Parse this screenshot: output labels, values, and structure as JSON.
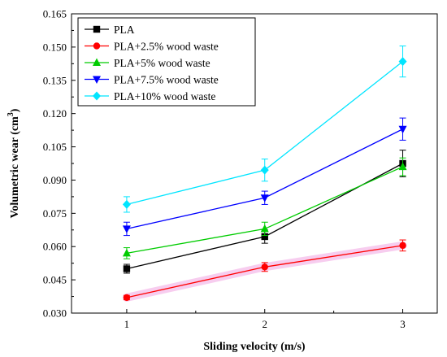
{
  "chart_data": {
    "type": "line",
    "xlabel": "Sliding velocity (m/s)",
    "ylabel_main": "Volumetric wear (cm",
    "ylabel_sup": "3",
    "ylabel_close": ")",
    "x": [
      1,
      2,
      3
    ],
    "xticks": [
      "1",
      "2",
      "3"
    ],
    "xlim": [
      0.6,
      3.25
    ],
    "ylim": [
      0.03,
      0.165
    ],
    "yticks": [
      "0.030",
      "0.045",
      "0.060",
      "0.075",
      "0.090",
      "0.105",
      "0.120",
      "0.135",
      "0.150",
      "0.165"
    ],
    "legend_position": "top-left",
    "grid": false,
    "series": [
      {
        "name": "PLA",
        "color": "#000000",
        "marker": "square",
        "values": [
          0.05,
          0.0645,
          0.0975
        ],
        "errors": [
          0.002,
          0.003,
          0.006
        ]
      },
      {
        "name": "PLA+2.5% wood waste",
        "color": "#ff0000",
        "marker": "circle",
        "values": [
          0.037,
          0.0508,
          0.0605
        ],
        "errors": [
          0.001,
          0.002,
          0.0025
        ]
      },
      {
        "name": "PLA+5% wood waste",
        "color": "#00cc00",
        "marker": "triangle-up",
        "values": [
          0.057,
          0.068,
          0.096
        ],
        "errors": [
          0.0025,
          0.003,
          0.004
        ]
      },
      {
        "name": "PLA+7.5% wood waste",
        "color": "#0000ff",
        "marker": "triangle-down",
        "values": [
          0.068,
          0.082,
          0.113
        ],
        "errors": [
          0.003,
          0.003,
          0.005
        ]
      },
      {
        "name": "PLA+10% wood waste",
        "color": "#00e5ff",
        "marker": "diamond",
        "values": [
          0.079,
          0.0945,
          0.1435
        ],
        "errors": [
          0.0035,
          0.005,
          0.007
        ]
      }
    ]
  }
}
